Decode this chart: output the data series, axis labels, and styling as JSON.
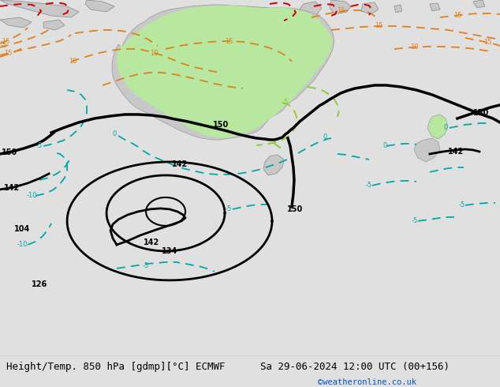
{
  "title_left": "Height/Temp. 850 hPa [gdmp][°C] ECMWF",
  "title_right": "Sa 29-06-2024 12:00 UTC (00+156)",
  "copyright": "©weatheronline.co.uk",
  "bg_color": "#e0e0e0",
  "sea_color": "#d8d8d8",
  "land_color": "#c8c8c8",
  "green_fill": "#b8e8a0",
  "footer_color": "#000000",
  "copyright_color": "#0055cc",
  "font_size_title": 9,
  "orange_color": "#e08020",
  "cyan_color": "#00a8a8",
  "red_color": "#cc0000",
  "lgreen_color": "#88cc22",
  "height_color": "#000000"
}
